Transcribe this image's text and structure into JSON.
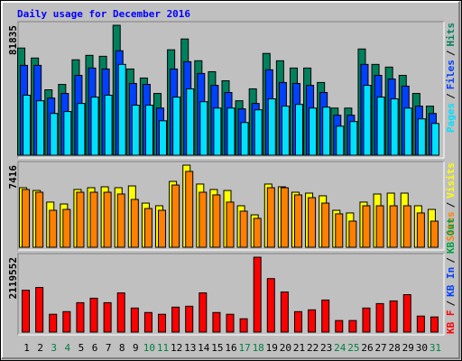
{
  "chart_data": {
    "type": "bar",
    "title": "Daily usage for December 2016",
    "categories": [
      "1",
      "2",
      "3",
      "4",
      "5",
      "6",
      "7",
      "8",
      "9",
      "10",
      "11",
      "12",
      "13",
      "14",
      "15",
      "16",
      "17",
      "18",
      "19",
      "20",
      "21",
      "22",
      "23",
      "24",
      "25",
      "26",
      "27",
      "28",
      "29",
      "30",
      "31"
    ],
    "category_colors": [
      "#000000",
      "#000000",
      "#008040",
      "#008040",
      "#000000",
      "#000000",
      "#000000",
      "#000000",
      "#000000",
      "#008040",
      "#008040",
      "#000000",
      "#000000",
      "#000000",
      "#000000",
      "#000000",
      "#008040",
      "#008040",
      "#000000",
      "#000000",
      "#000000",
      "#000000",
      "#000000",
      "#008040",
      "#008040",
      "#000000",
      "#000000",
      "#000000",
      "#000000",
      "#000000",
      "#008040"
    ],
    "separator": "/",
    "panels": [
      {
        "ylim": [
          0,
          81835
        ],
        "yticks": [
          81835
        ],
        "series": [
          {
            "name": "Hits",
            "color": "#00805c",
            "values": [
              67500,
              61200,
              41200,
              44600,
              60100,
              62900,
              62300,
              81835,
              54300,
              48600,
              38900,
              66400,
              73200,
              59500,
              52600,
              46900,
              34300,
              41800,
              64100,
              59500,
              54900,
              54900,
              45800,
              29700,
              29700,
              66900,
              57200,
              55500,
              50300,
              38900,
              30900
            ]
          },
          {
            "name": "Files",
            "color": "#0040ff",
            "values": [
              56600,
              56600,
              36000,
              38900,
              50300,
              54900,
              54300,
              65800,
              45200,
              44600,
              29700,
              54300,
              58900,
              51500,
              44000,
              39500,
              29200,
              32600,
              53800,
              45800,
              45200,
              44000,
              39500,
              25200,
              25200,
              57200,
              50300,
              48000,
              43500,
              30900,
              26300
            ]
          },
          {
            "name": "Pages",
            "color": "#00e0ff",
            "values": [
              37800,
              34300,
              26300,
              27500,
              32600,
              36600,
              37800,
              57200,
              31500,
              31500,
              21700,
              36600,
              41800,
              33700,
              29700,
              29700,
              20600,
              28600,
              35500,
              30900,
              32000,
              29700,
              30300,
              18300,
              21200,
              44000,
              36600,
              35500,
              29700,
              22900,
              20000
            ]
          }
        ]
      },
      {
        "ylim": [
          0,
          7416
        ],
        "yticks": [
          7416
        ],
        "series": [
          {
            "name": "Visits",
            "color": "#ffff00",
            "values": [
              5380,
              5130,
              4080,
              3910,
              5220,
              5380,
              5460,
              5380,
              5540,
              3990,
              3750,
              5950,
              7416,
              5710,
              5220,
              5130,
              3750,
              2930,
              5710,
              5460,
              4970,
              4890,
              4650,
              3340,
              3100,
              4080,
              4810,
              4890,
              4890,
              3750,
              3420
            ]
          },
          {
            "name": "Sites",
            "color": "#ff8000",
            "values": [
              5220,
              4970,
              3340,
              3420,
              4970,
              4970,
              4970,
              4810,
              4320,
              3500,
              3340,
              5620,
              6850,
              4970,
              4730,
              4080,
              3260,
              2610,
              5380,
              5380,
              4730,
              4480,
              3990,
              3020,
              2360,
              3750,
              3750,
              3750,
              3750,
              3100,
              2360
            ]
          }
        ]
      },
      {
        "ylim": [
          0,
          2119552
        ],
        "yticks": [
          2119552
        ],
        "series": [
          {
            "name": "KB F",
            "color": "#ff0000",
            "values": [
              1186000,
              1262000,
              505000,
              580000,
              833000,
              959000,
              833000,
              1110000,
              681000,
              555000,
              505000,
              707000,
              732000,
              1110000,
              555000,
              505000,
              378000,
              2119552,
              1514000,
              1135000,
              580000,
              631000,
              908000,
              328000,
              328000,
              681000,
              807000,
              883000,
              1060000,
              454000,
              429000
            ]
          }
        ],
        "legend_extra": [
          {
            "name": "KB In",
            "color": "#0040ff"
          },
          {
            "name": "KB Out",
            "color": "#00a040"
          }
        ]
      }
    ]
  }
}
